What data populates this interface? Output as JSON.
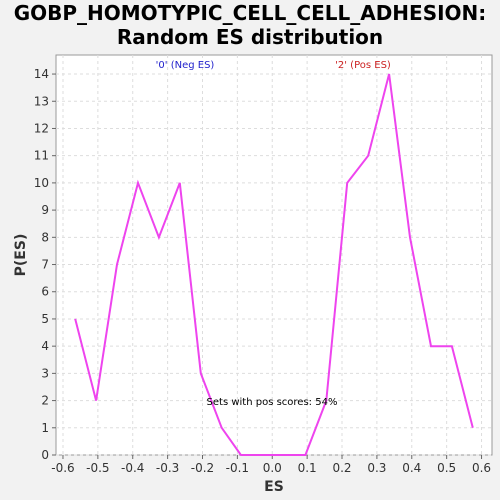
{
  "chart_data": {
    "type": "line",
    "title_line1": "GOBP_HOMOTYPIC_CELL_CELL_ADHESION:",
    "title_line2": "Random ES distribution",
    "xlabel": "ES",
    "ylabel": "P(ES)",
    "xlim": [
      -0.62,
      0.63
    ],
    "ylim": [
      0,
      14.7
    ],
    "x_ticks": [
      -0.6,
      -0.5,
      -0.4,
      -0.3,
      -0.2,
      -0.1,
      0.0,
      0.1,
      0.2,
      0.3,
      0.4,
      0.5,
      0.6
    ],
    "x_tick_labels": [
      "-0.6",
      "-0.5",
      "-0.4",
      "-0.3",
      "-0.2",
      "-0.1",
      "0.0",
      "0.1",
      "0.2",
      "0.3",
      "0.4",
      "0.5",
      "0.6"
    ],
    "y_ticks": [
      0,
      1,
      2,
      3,
      4,
      5,
      6,
      7,
      8,
      9,
      10,
      11,
      12,
      13,
      14
    ],
    "y_tick_labels": [
      "0",
      "1",
      "2",
      "3",
      "4",
      "5",
      "6",
      "7",
      "8",
      "9",
      "10",
      "11",
      "12",
      "13",
      "14"
    ],
    "grid": true,
    "series": [
      {
        "color": "#ee44ee",
        "x": [
          -0.565,
          -0.505,
          -0.445,
          -0.385,
          -0.325,
          -0.265,
          -0.205,
          -0.145,
          -0.09,
          -0.03,
          0.03,
          0.095,
          0.155,
          0.215,
          0.275,
          0.335,
          0.395,
          0.455,
          0.515,
          0.575
        ],
        "y": [
          5,
          2,
          7,
          10,
          8,
          10,
          3,
          1,
          0,
          0,
          0,
          0,
          2,
          10,
          11,
          14,
          8,
          4,
          4,
          1
        ]
      }
    ],
    "annotations": {
      "neg": {
        "text": "'0' (Neg ES)",
        "color": "#2222cc"
      },
      "pos": {
        "text": "'2' (Pos ES)",
        "color": "#cc2222"
      },
      "pos_scores": {
        "text": "Sets with pos scores: 54%",
        "color": "#000000"
      }
    }
  }
}
